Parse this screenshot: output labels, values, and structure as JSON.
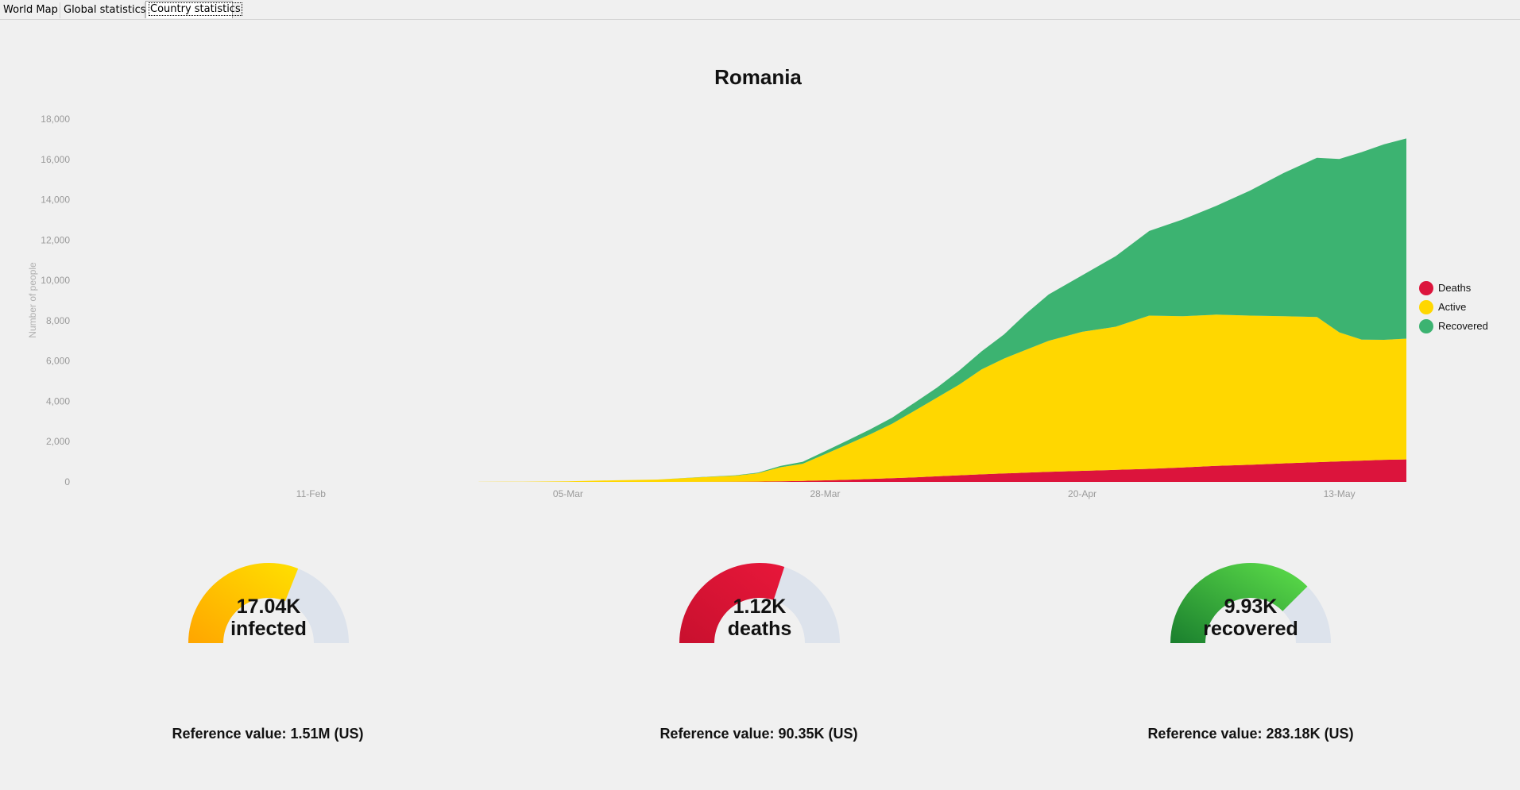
{
  "tabs": [
    {
      "label": "World Map",
      "active": false
    },
    {
      "label": "Global statistics",
      "active": false
    },
    {
      "label": "Country statistics",
      "active": true
    }
  ],
  "chart_data": {
    "type": "area",
    "stacked": true,
    "title": "Romania",
    "ylabel": "Number of people",
    "xlabel": "",
    "ylim": [
      0,
      18000
    ],
    "yticks": [
      0,
      2000,
      4000,
      6000,
      8000,
      10000,
      12000,
      14000,
      16000,
      18000
    ],
    "ytick_labels": [
      "0",
      "2,000",
      "4,000",
      "6,000",
      "8,000",
      "10,000",
      "12,000",
      "14,000",
      "16,000",
      "18,000"
    ],
    "x_range": [
      "2020-01-22",
      "2020-05-19"
    ],
    "xticks": [
      {
        "date": "2020-02-11",
        "label": "11-Feb"
      },
      {
        "date": "2020-03-05",
        "label": "05-Mar"
      },
      {
        "date": "2020-03-28",
        "label": "28-Mar"
      },
      {
        "date": "2020-04-20",
        "label": "20-Apr"
      },
      {
        "date": "2020-05-13",
        "label": "13-May"
      }
    ],
    "legend_position": "right",
    "grid": false,
    "dates": [
      "2020-02-26",
      "2020-03-01",
      "2020-03-05",
      "2020-03-09",
      "2020-03-13",
      "2020-03-17",
      "2020-03-20",
      "2020-03-22",
      "2020-03-24",
      "2020-03-26",
      "2020-03-28",
      "2020-03-30",
      "2020-04-01",
      "2020-04-03",
      "2020-04-05",
      "2020-04-07",
      "2020-04-09",
      "2020-04-11",
      "2020-04-13",
      "2020-04-15",
      "2020-04-17",
      "2020-04-20",
      "2020-04-23",
      "2020-04-26",
      "2020-04-29",
      "2020-05-02",
      "2020-05-05",
      "2020-05-08",
      "2020-05-11",
      "2020-05-13",
      "2020-05-15",
      "2020-05-17",
      "2020-05-19"
    ],
    "series": [
      {
        "name": "Deaths",
        "color": "#dc143c",
        "values": [
          0,
          0,
          0,
          0,
          0,
          5,
          10,
          15,
          30,
          50,
          80,
          110,
          150,
          190,
          230,
          280,
          330,
          380,
          420,
          460,
          500,
          550,
          600,
          650,
          720,
          800,
          850,
          920,
          980,
          1020,
          1060,
          1100,
          1120
        ]
      },
      {
        "name": "Active",
        "color": "#ffd700",
        "values": [
          5,
          10,
          30,
          80,
          120,
          230,
          300,
          420,
          700,
          850,
          1300,
          1750,
          2200,
          2700,
          3300,
          3900,
          4500,
          5200,
          5700,
          6100,
          6500,
          6900,
          7100,
          7600,
          7500,
          7500,
          7400,
          7300,
          7200,
          6400,
          6000,
          5950,
          5990
        ]
      },
      {
        "name": "Recovered",
        "color": "#3cb371",
        "values": [
          0,
          0,
          0,
          0,
          0,
          10,
          20,
          30,
          60,
          100,
          150,
          200,
          250,
          300,
          400,
          500,
          700,
          900,
          1200,
          1800,
          2300,
          2800,
          3500,
          4200,
          4800,
          5400,
          6200,
          7100,
          7900,
          8600,
          9300,
          9700,
          9930
        ]
      }
    ]
  },
  "gauges": [
    {
      "value": "17.04K",
      "label": "infected",
      "fraction": 0.62,
      "color_from": "#ffa500",
      "color_to": "#ffe000",
      "reference": "Reference value: 1.51M (US)"
    },
    {
      "value": "1.12K",
      "label": "deaths",
      "fraction": 0.6,
      "color_from": "#c8102e",
      "color_to": "#e8173a",
      "reference": "Reference value: 90.35K (US)"
    },
    {
      "value": "9.93K",
      "label": "recovered",
      "fraction": 0.75,
      "color_from": "#1a7f2e",
      "color_to": "#5ee04a",
      "reference": "Reference value: 283.18K (US)"
    }
  ],
  "colors": {
    "track": "#dde3ec",
    "axis_text": "#9a9a9a",
    "background": "#f0f0f0"
  }
}
